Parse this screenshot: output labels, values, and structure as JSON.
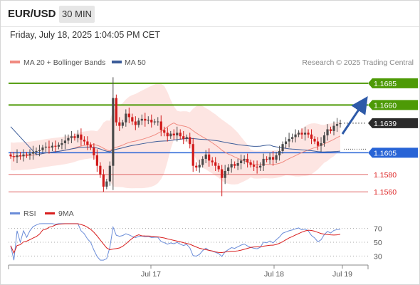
{
  "header": {
    "symbol": "EUR/USD",
    "timeframe": "30 MIN",
    "datetime": "Friday, July 18, 2025 1:04:05 PM CET"
  },
  "colors": {
    "resistance": "#4d9a06",
    "pivot": "#2864d6",
    "support": "#e06666",
    "last_price_tag": "#2b2b2b",
    "candle_up": "#4a4a4a",
    "candle_down": "#d11a1a",
    "bollinger_fill": "#fde2df",
    "ma20": "#f08a80",
    "ma50": "#3c5c99",
    "rsi": "#6a8cd8",
    "rsi_ma": "#d81e1e",
    "arrow": "#2e5aa8"
  },
  "chart_data": [
    {
      "type": "candlestick",
      "title": "EUR/USD 30 MIN",
      "legend": [
        "MA 20 + Bollinger Bands",
        "MA 50"
      ],
      "legend_position": "top-left",
      "credit": "Research © 2025 Trading Central",
      "x_ticks": [
        "Jul 17",
        "Jul 18",
        "Jul 19"
      ],
      "ylim": [
        1.1552,
        1.1698
      ],
      "levels": [
        {
          "value": 1.1685,
          "label": "1.1685",
          "kind": "resistance"
        },
        {
          "value": 1.166,
          "label": "1.1660",
          "kind": "resistance"
        },
        {
          "value": 1.1639,
          "label": "1.1639",
          "kind": "last"
        },
        {
          "value": 1.1605,
          "label": "1.1605",
          "kind": "pivot"
        },
        {
          "value": 1.158,
          "label": "1.1580",
          "kind": "support"
        },
        {
          "value": 1.156,
          "label": "1.1560",
          "kind": "support"
        }
      ],
      "close": [
        1.1601,
        1.16,
        1.1602,
        1.1601,
        1.1603,
        1.1602,
        1.1604,
        1.1606,
        1.1607,
        1.1608,
        1.1611,
        1.1612,
        1.1611,
        1.1613,
        1.1612,
        1.1614,
        1.1616,
        1.1619,
        1.1622,
        1.1624,
        1.1622,
        1.1626,
        1.162,
        1.1618,
        1.1614,
        1.1611,
        1.1602,
        1.159,
        1.158,
        1.1566,
        1.1572,
        1.159,
        1.1668,
        1.164,
        1.1636,
        1.164,
        1.165,
        1.1646,
        1.1641,
        1.1637,
        1.1642,
        1.1644,
        1.1642,
        1.1643,
        1.164,
        1.1641,
        1.1641,
        1.1631,
        1.1628,
        1.1624,
        1.1627,
        1.1625,
        1.1628,
        1.1624,
        1.1621,
        1.1623,
        1.1615,
        1.159,
        1.1588,
        1.1591,
        1.1598,
        1.1603,
        1.1596,
        1.1594,
        1.159,
        1.1586,
        1.1576,
        1.1584,
        1.1588,
        1.1592,
        1.159,
        1.1593,
        1.1596,
        1.1598,
        1.1594,
        1.1591,
        1.1589,
        1.1588,
        1.159,
        1.1598,
        1.1597,
        1.16,
        1.1597,
        1.1602,
        1.1607,
        1.1615,
        1.1618,
        1.1621,
        1.1623,
        1.1626,
        1.1628,
        1.1626,
        1.1628,
        1.1626,
        1.1621,
        1.1618,
        1.1613,
        1.1616,
        1.1625,
        1.1632,
        1.163,
        1.1636,
        1.1638,
        1.1639
      ]
    },
    {
      "type": "line",
      "title": "RSI",
      "legend": [
        "RSI",
        "9MA"
      ],
      "legend_position": "top-left",
      "y_ticks": [
        "70",
        "50",
        "30"
      ],
      "ylim": [
        20,
        80
      ]
    }
  ]
}
